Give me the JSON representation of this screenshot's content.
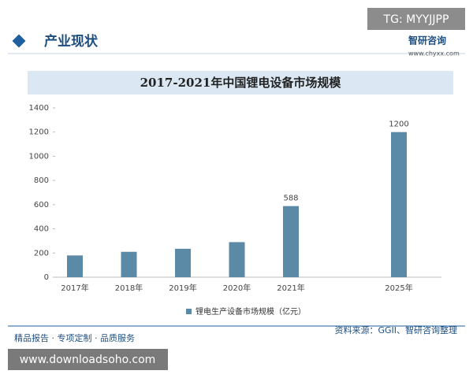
{
  "header": {
    "section": "产业现状",
    "badge": "TG: MYYJJPP",
    "brand": "智研咨询",
    "site": "www.chyxx.com"
  },
  "chart_data": {
    "type": "bar",
    "title": "2017-2021年中国锂电设备市场规模",
    "categories": [
      "2017年",
      "2018年",
      "2019年",
      "2020年",
      "2021年",
      "2025年"
    ],
    "series": [
      {
        "name": "锂电生产设备市场规模（亿元）",
        "color": "#5b8aa6",
        "values": [
          180,
          210,
          235,
          290,
          588,
          1200
        ],
        "value_labels": [
          null,
          null,
          null,
          null,
          "588",
          "1200"
        ]
      }
    ],
    "ylim": [
      0,
      1400
    ],
    "yticks": [
      0,
      200,
      400,
      600,
      800,
      1000,
      1200,
      1400
    ],
    "grid": false,
    "legend": "bottom"
  },
  "footer": {
    "source": "资料来源：GGII、智研咨询整理",
    "slogan": "精品报告 · 专项定制 · 品质服务",
    "watermark": "www.downloadsoho.com"
  }
}
